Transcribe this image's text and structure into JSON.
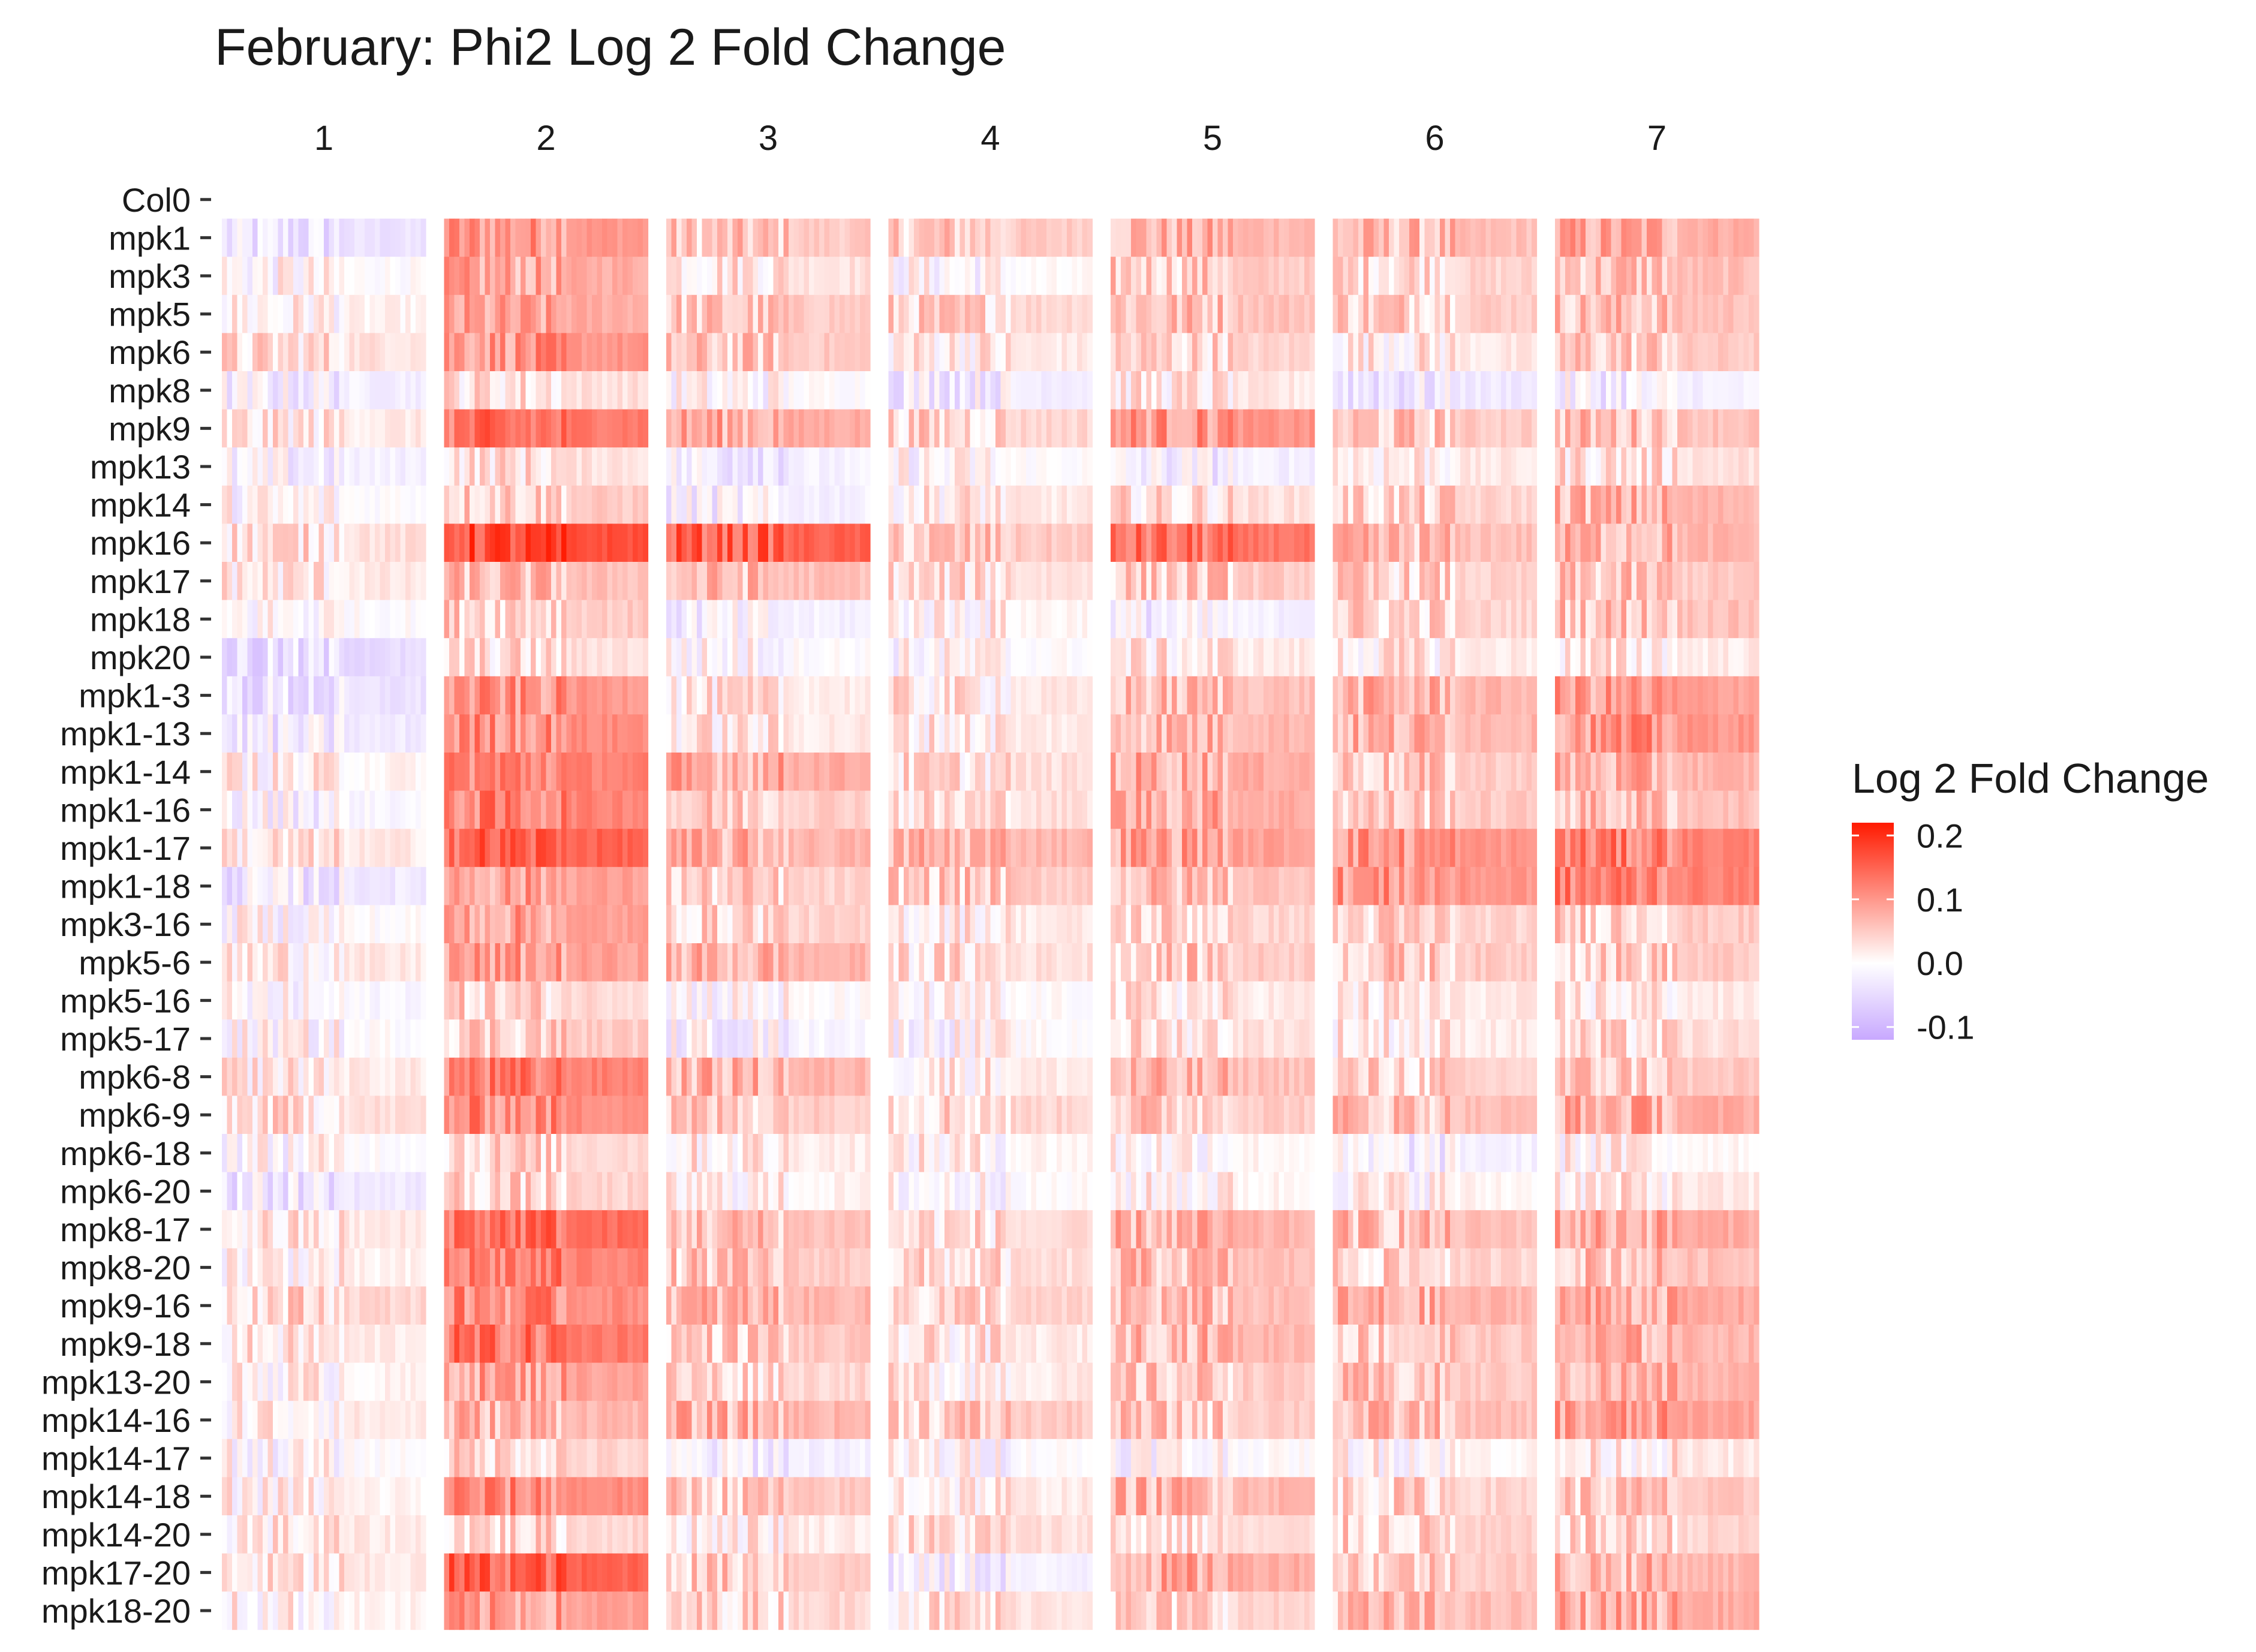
{
  "chart_data": {
    "type": "heatmap",
    "title": "February: Phi2 Log 2 Fold Change",
    "facets": [
      "1",
      "2",
      "3",
      "4",
      "5",
      "6",
      "7"
    ],
    "rows": [
      "Col0",
      "mpk1",
      "mpk3",
      "mpk5",
      "mpk6",
      "mpk8",
      "mpk9",
      "mpk13",
      "mpk14",
      "mpk16",
      "mpk17",
      "mpk18",
      "mpk20",
      "mpk1-3",
      "mpk1-13",
      "mpk1-14",
      "mpk1-16",
      "mpk1-17",
      "mpk1-18",
      "mpk3-16",
      "mpk5-6",
      "mpk5-16",
      "mpk5-17",
      "mpk6-8",
      "mpk6-9",
      "mpk6-18",
      "mpk6-20",
      "mpk8-17",
      "mpk8-20",
      "mpk9-16",
      "mpk9-18",
      "mpk13-20",
      "mpk14-16",
      "mpk14-17",
      "mpk14-18",
      "mpk14-20",
      "mpk17-20",
      "mpk18-20"
    ],
    "legend": {
      "title": "Log 2 Fold Change",
      "ticks": [
        0.2,
        0.1,
        0.0,
        -0.1
      ],
      "tick_labels": [
        "0.2",
        "0.1",
        "0.0",
        "-0.1"
      ],
      "range": [
        -0.12,
        0.22
      ],
      "low_color": "#c8a8ff",
      "mid_color": "#ffffff",
      "high_color": "#ff1a00",
      "placement": "right"
    },
    "row_means": [
      [
        0.0,
        0.0,
        0.0,
        0.0,
        0.0,
        0.0,
        0.0
      ],
      [
        -0.04,
        0.1,
        0.05,
        0.05,
        0.07,
        0.06,
        0.08
      ],
      [
        0.0,
        0.08,
        0.03,
        0.0,
        0.05,
        0.04,
        0.06
      ],
      [
        0.01,
        0.08,
        0.05,
        0.04,
        0.06,
        0.05,
        0.06
      ],
      [
        0.03,
        0.1,
        0.05,
        0.02,
        0.04,
        0.02,
        0.05
      ],
      [
        -0.02,
        0.03,
        0.0,
        -0.02,
        0.02,
        -0.03,
        -0.02
      ],
      [
        0.02,
        0.13,
        0.08,
        0.04,
        0.1,
        0.05,
        0.06
      ],
      [
        -0.02,
        0.03,
        -0.02,
        0.0,
        -0.02,
        0.02,
        0.03
      ],
      [
        0.0,
        0.05,
        -0.02,
        0.02,
        0.03,
        0.04,
        0.07
      ],
      [
        0.03,
        0.17,
        0.15,
        0.05,
        0.13,
        0.06,
        0.07
      ],
      [
        0.02,
        0.06,
        0.06,
        0.03,
        0.05,
        0.04,
        0.05
      ],
      [
        0.0,
        0.05,
        -0.02,
        0.01,
        -0.02,
        0.04,
        0.06
      ],
      [
        -0.05,
        0.03,
        0.0,
        0.0,
        0.02,
        0.02,
        0.02
      ],
      [
        -0.04,
        0.1,
        0.02,
        0.02,
        0.06,
        0.07,
        0.09
      ],
      [
        -0.03,
        0.11,
        0.02,
        0.02,
        0.07,
        0.07,
        0.1
      ],
      [
        0.01,
        0.12,
        0.08,
        0.03,
        0.08,
        0.05,
        0.07
      ],
      [
        -0.01,
        0.12,
        0.05,
        0.03,
        0.08,
        0.05,
        0.06
      ],
      [
        0.02,
        0.15,
        0.07,
        0.07,
        0.09,
        0.1,
        0.12
      ],
      [
        -0.03,
        0.09,
        0.04,
        0.05,
        0.06,
        0.1,
        0.12
      ],
      [
        0.0,
        0.09,
        0.04,
        0.02,
        0.04,
        0.04,
        0.05
      ],
      [
        0.02,
        0.09,
        0.07,
        0.03,
        0.05,
        0.05,
        0.05
      ],
      [
        -0.01,
        0.04,
        0.0,
        0.0,
        0.02,
        0.02,
        0.02
      ],
      [
        0.0,
        0.05,
        -0.01,
        0.0,
        0.03,
        0.02,
        0.03
      ],
      [
        0.02,
        0.12,
        0.07,
        0.02,
        0.06,
        0.04,
        0.05
      ],
      [
        0.03,
        0.11,
        0.05,
        0.04,
        0.05,
        0.06,
        0.08
      ],
      [
        0.0,
        0.04,
        0.02,
        0.01,
        0.01,
        -0.02,
        0.01
      ],
      [
        -0.03,
        0.04,
        0.01,
        0.0,
        0.01,
        0.01,
        0.02
      ],
      [
        0.02,
        0.14,
        0.06,
        0.03,
        0.07,
        0.06,
        0.08
      ],
      [
        0.01,
        0.12,
        0.05,
        0.03,
        0.06,
        0.04,
        0.06
      ],
      [
        0.04,
        0.11,
        0.07,
        0.04,
        0.06,
        0.07,
        0.08
      ],
      [
        0.02,
        0.13,
        0.05,
        0.02,
        0.07,
        0.05,
        0.07
      ],
      [
        0.01,
        0.09,
        0.04,
        0.02,
        0.05,
        0.05,
        0.07
      ],
      [
        0.02,
        0.07,
        0.07,
        0.05,
        0.05,
        0.06,
        0.09
      ],
      [
        0.0,
        0.04,
        -0.02,
        0.0,
        0.0,
        0.01,
        0.02
      ],
      [
        0.01,
        0.11,
        0.05,
        0.02,
        0.07,
        0.04,
        0.05
      ],
      [
        0.02,
        0.04,
        0.02,
        0.03,
        0.03,
        0.04,
        0.04
      ],
      [
        0.02,
        0.15,
        0.05,
        -0.02,
        0.08,
        0.05,
        0.07
      ],
      [
        0.01,
        0.09,
        0.04,
        0.03,
        0.04,
        0.06,
        0.08
      ]
    ]
  }
}
